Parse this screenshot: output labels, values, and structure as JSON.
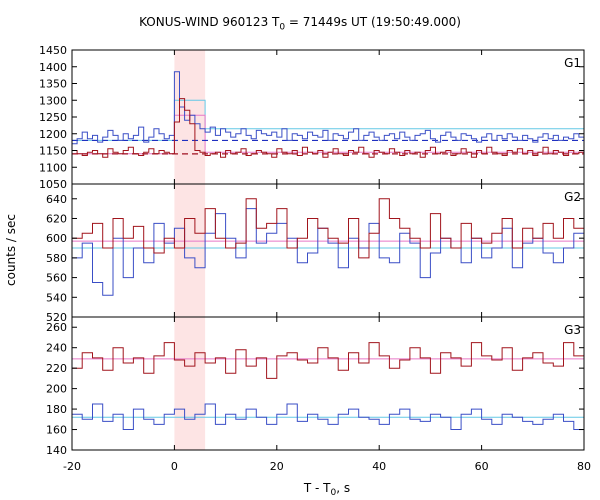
{
  "chart_data": {
    "type": "line",
    "title_parts": {
      "pre": "KONUS-WIND 960123 T",
      "sub": "0",
      "post": " = 71449s UT (19:50:49.000)"
    },
    "xlabel_parts": {
      "pre": "T - T",
      "sub": "0",
      "post": ", s"
    },
    "ylabel": "counts / sec",
    "xlim": [
      -20,
      80
    ],
    "xticks": [
      -20,
      0,
      20,
      40,
      60,
      80
    ],
    "highlight_interval": [
      0,
      6
    ],
    "colors": {
      "series_blue": "#3a4ec6",
      "series_red": "#a1141c",
      "fit_blue": "#64c8e6",
      "fit_red": "#e678c8",
      "highlight": "#fde4e4",
      "dash_blue": "#2030c0",
      "dash_red": "#a01020"
    },
    "panels": [
      {
        "name": "G1",
        "ylim": [
          1050,
          1450
        ],
        "yticks": [
          1050,
          1100,
          1150,
          1200,
          1250,
          1300,
          1350,
          1400,
          1450
        ],
        "bin_width": 1,
        "x_start": -20,
        "blue": [
          1170,
          1185,
          1205,
          1185,
          1195,
          1175,
          1190,
          1210,
          1195,
          1180,
          1200,
          1185,
          1195,
          1220,
          1175,
          1190,
          1215,
          1200,
          1185,
          1195,
          1385,
          1280,
          1240,
          1255,
          1230,
          1215,
          1205,
          1220,
          1195,
          1215,
          1205,
          1190,
          1200,
          1215,
          1195,
          1185,
          1210,
          1200,
          1195,
          1205,
          1190,
          1215,
          1180,
          1200,
          1195,
          1185,
          1205,
          1195,
          1190,
          1210,
          1180,
          1200,
          1195,
          1185,
          1205,
          1215,
          1180,
          1195,
          1205,
          1190,
          1180,
          1195,
          1200,
          1185,
          1205,
          1190,
          1180,
          1195,
          1200,
          1210,
          1185,
          1175,
          1195,
          1205,
          1190,
          1180,
          1200,
          1195,
          1185,
          1175,
          1190,
          1200,
          1180,
          1195,
          1185,
          1200,
          1190,
          1180,
          1195,
          1185,
          1175,
          1190,
          1200,
          1185,
          1195,
          1180,
          1190,
          1185,
          1200,
          1190
        ],
        "red": [
          1150,
          1140,
          1135,
          1145,
          1150,
          1140,
          1130,
          1155,
          1145,
          1140,
          1150,
          1160,
          1140,
          1135,
          1145,
          1155,
          1140,
          1150,
          1145,
          1140,
          1235,
          1305,
          1270,
          1230,
          1150,
          1145,
          1135,
          1140,
          1145,
          1130,
          1150,
          1140,
          1145,
          1155,
          1135,
          1140,
          1150,
          1145,
          1140,
          1130,
          1155,
          1145,
          1140,
          1150,
          1135,
          1160,
          1145,
          1140,
          1150,
          1130,
          1145,
          1155,
          1140,
          1135,
          1150,
          1145,
          1160,
          1140,
          1130,
          1150,
          1145,
          1140,
          1155,
          1145,
          1135,
          1150,
          1140,
          1145,
          1130,
          1150,
          1160,
          1140,
          1145,
          1150,
          1135,
          1140,
          1155,
          1145,
          1130,
          1150,
          1140,
          1160,
          1145,
          1140,
          1135,
          1150,
          1145,
          1155,
          1140,
          1150,
          1135,
          1145,
          1160,
          1140,
          1150,
          1145,
          1135,
          1150,
          1140,
          1145
        ],
        "blue_fit": [
          [
            -20,
            1180
          ],
          [
            0,
            1180
          ],
          [
            0,
            1300
          ],
          [
            6,
            1300
          ],
          [
            6,
            1215
          ],
          [
            80,
            1215
          ]
        ],
        "red_fit": [
          [
            -20,
            1140
          ],
          [
            0,
            1140
          ],
          [
            0,
            1255
          ],
          [
            6,
            1255
          ],
          [
            6,
            1145
          ],
          [
            80,
            1145
          ]
        ],
        "blue_dashed_level": 1180,
        "red_dashed_level": 1140
      },
      {
        "name": "G2",
        "ylim": [
          520,
          655
        ],
        "yticks": [
          520,
          540,
          560,
          580,
          600,
          620,
          640
        ],
        "bin_width": 2,
        "x_start": -20,
        "blue": [
          580,
          595,
          555,
          542,
          600,
          560,
          590,
          575,
          615,
          595,
          610,
          580,
          570,
          605,
          625,
          600,
          580,
          630,
          595,
          605,
          615,
          600,
          575,
          585,
          610,
          595,
          570,
          600,
          590,
          615,
          580,
          575,
          605,
          595,
          560,
          585,
          600,
          590,
          575,
          600,
          580,
          590,
          610,
          570,
          595,
          600,
          585,
          575,
          590,
          605
        ],
        "red": [
          600,
          605,
          615,
          590,
          620,
          600,
          612,
          590,
          585,
          600,
          590,
          620,
          605,
          630,
          600,
          590,
          595,
          640,
          610,
          615,
          630,
          590,
          600,
          620,
          610,
          600,
          595,
          620,
          580,
          605,
          640,
          620,
          610,
          600,
          590,
          625,
          600,
          590,
          615,
          600,
          595,
          605,
          620,
          590,
          610,
          600,
          615,
          600,
          620,
          610
        ],
        "blue_fit": [
          [
            -20,
            590
          ],
          [
            80,
            590
          ]
        ],
        "red_fit": [
          [
            -20,
            597
          ],
          [
            80,
            597
          ]
        ]
      },
      {
        "name": "G3",
        "ylim": [
          140,
          270
        ],
        "yticks": [
          140,
          160,
          180,
          200,
          220,
          240,
          260
        ],
        "bin_width": 2,
        "x_start": -20,
        "blue": [
          175,
          170,
          185,
          168,
          175,
          160,
          180,
          170,
          165,
          175,
          180,
          170,
          175,
          185,
          165,
          175,
          170,
          180,
          172,
          165,
          175,
          185,
          168,
          175,
          170,
          165,
          175,
          180,
          172,
          170,
          165,
          175,
          180,
          170,
          168,
          175,
          172,
          160,
          175,
          180,
          170,
          165,
          175,
          172,
          168,
          165,
          170,
          175,
          168,
          160
        ],
        "red": [
          220,
          235,
          230,
          218,
          240,
          225,
          230,
          215,
          232,
          245,
          228,
          222,
          235,
          225,
          230,
          215,
          238,
          222,
          230,
          210,
          232,
          235,
          228,
          225,
          240,
          230,
          218,
          235,
          225,
          245,
          232,
          220,
          228,
          240,
          230,
          215,
          235,
          230,
          222,
          245,
          232,
          228,
          240,
          218,
          230,
          235,
          225,
          222,
          245,
          232
        ],
        "blue_fit": [
          [
            -20,
            172
          ],
          [
            80,
            172
          ]
        ],
        "red_fit": [
          [
            -20,
            229
          ],
          [
            80,
            229
          ]
        ]
      }
    ]
  }
}
